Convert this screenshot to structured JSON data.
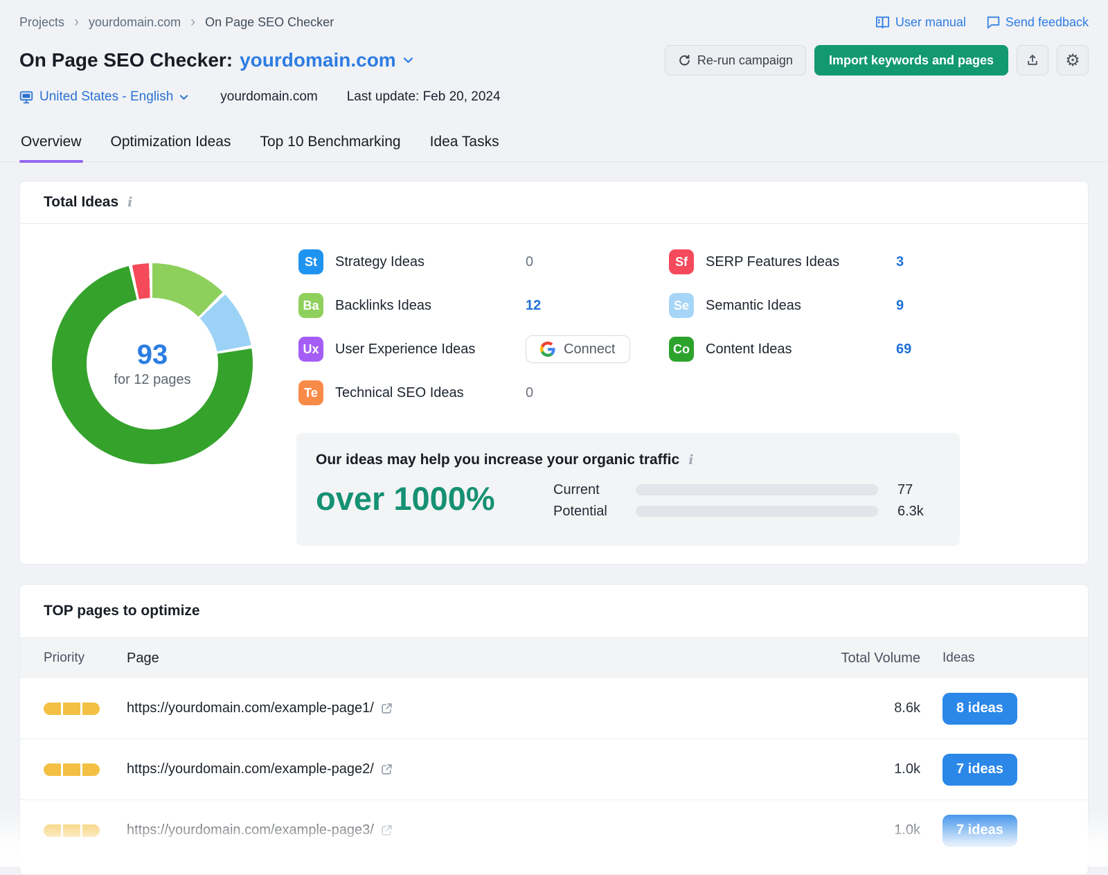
{
  "breadcrumb": {
    "items": [
      "Projects",
      "yourdomain.com",
      "On Page SEO Checker"
    ]
  },
  "top_links": {
    "user_manual": "User manual",
    "send_feedback": "Send feedback"
  },
  "header": {
    "title_prefix": "On Page SEO Checker:",
    "domain": "yourdomain.com",
    "rerun_label": "Re-run campaign",
    "import_label": "Import keywords and pages",
    "locale": "United States - English",
    "domain_plain": "yourdomain.com",
    "last_update": "Last update: Feb 20, 2024",
    "accent_blue": "#2e7ce4",
    "accent_green": "#12996f"
  },
  "tabs": [
    {
      "label": "Overview",
      "active": true
    },
    {
      "label": "Optimization Ideas",
      "active": false
    },
    {
      "label": "Top 10 Benchmarking",
      "active": false
    },
    {
      "label": "Idea Tasks",
      "active": false
    }
  ],
  "total_ideas": {
    "title": "Total Ideas",
    "donut_total": "93",
    "donut_subtitle": "for 12 pages",
    "chart": {
      "type": "pie",
      "title": "Total Ideas",
      "total": 93,
      "segments": [
        {
          "name": "Backlinks Ideas",
          "value": 12,
          "color": "#8ed05c"
        },
        {
          "name": "Semantic Ideas",
          "value": 9,
          "color": "#9bd2f6"
        },
        {
          "name": "Content Ideas",
          "value": 69,
          "color": "#35a22c"
        },
        {
          "name": "SERP Features Ideas",
          "value": 3,
          "color": "#f54a59"
        }
      ]
    },
    "categories": [
      {
        "badge": "St",
        "color": "#1e93f0",
        "label": "Strategy Ideas",
        "value": "0"
      },
      {
        "badge": "Ba",
        "color": "#8fd05c",
        "label": "Backlinks Ideas",
        "value": "12"
      },
      {
        "badge": "Ux",
        "color": "#a55ef5",
        "label": "User Experience Ideas",
        "value": ""
      },
      {
        "badge": "Te",
        "color": "#f98b49",
        "label": "Technical SEO Ideas",
        "value": "0"
      },
      {
        "badge": "Sf",
        "color": "#f54a5c",
        "label": "SERP Features Ideas",
        "value": "3"
      },
      {
        "badge": "Se",
        "color": "#a6d5f7",
        "label": "Semantic Ideas",
        "value": "9"
      },
      {
        "badge": "Co",
        "color": "#2ba32c",
        "label": "Content Ideas",
        "value": "69"
      }
    ],
    "connect_label": "Connect",
    "traffic": {
      "title": "Our ideas may help you increase your organic traffic",
      "highlight": "over 1000%",
      "current_label": "Current",
      "current_value": "77",
      "current_fill_pct": 2,
      "potential_label": "Potential",
      "potential_value": "6.3k",
      "potential_fill_pct": 100,
      "bar_color": "#2ea7f4"
    }
  },
  "top_pages": {
    "title": "TOP pages to optimize",
    "columns": [
      "Priority",
      "Page",
      "Total Volume",
      "Ideas"
    ],
    "rows": [
      {
        "url": "https://yourdomain.com/example-page1/",
        "volume": "8.6k",
        "ideas_label": "8 ideas"
      },
      {
        "url": "https://yourdomain.com/example-page2/",
        "volume": "1.0k",
        "ideas_label": "7 ideas"
      },
      {
        "url": "https://yourdomain.com/example-page3/",
        "volume": "1.0k",
        "ideas_label": "7 ideas"
      }
    ]
  }
}
